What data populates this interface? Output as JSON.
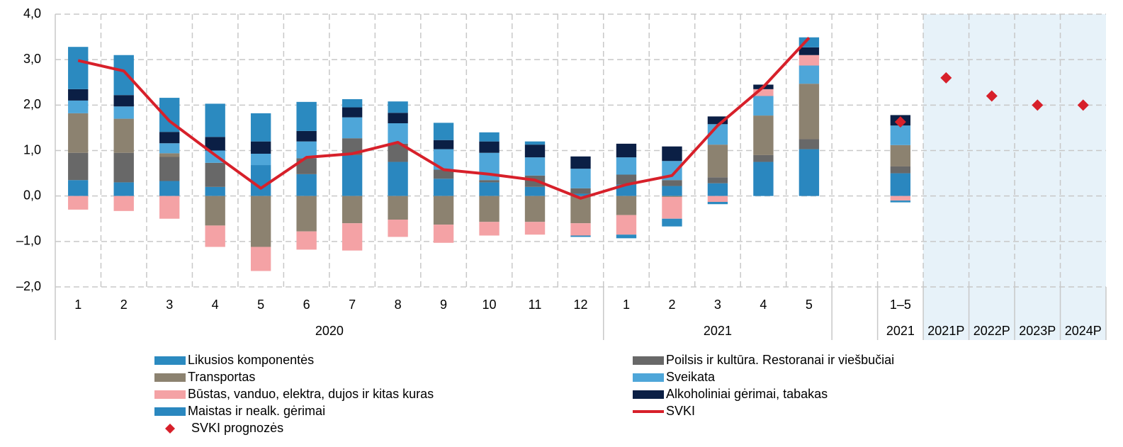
{
  "chart_data": {
    "type": "bar",
    "stacked": true,
    "categories": [
      "1",
      "2",
      "3",
      "4",
      "5",
      "6",
      "7",
      "8",
      "9",
      "10",
      "11",
      "12",
      "1",
      "2",
      "3",
      "4",
      "5",
      null,
      "1–5",
      null,
      null,
      null,
      null
    ],
    "category_groups": [
      {
        "label": "2020",
        "count": 12
      },
      {
        "label": "2021",
        "count": 5
      },
      {
        "label": null,
        "count": 1
      },
      {
        "label": "2021",
        "count": 1
      },
      {
        "label": "2021P",
        "count": 1
      },
      {
        "label": "2022P",
        "count": 1
      },
      {
        "label": "2023P",
        "count": 1
      },
      {
        "label": "2024P",
        "count": 1
      }
    ],
    "series": [
      {
        "name": "Maistas ir nealk. gėrimai",
        "color": "#2a87bf",
        "values": [
          0.35,
          0.3,
          0.33,
          0.2,
          0.68,
          0.48,
          0.9,
          0.75,
          0.38,
          0.3,
          0.2,
          0.05,
          0.25,
          0.22,
          0.28,
          0.75,
          1.03,
          null,
          0.5,
          null,
          null,
          null,
          null
        ]
      },
      {
        "name": "Poilsis ir kultūra. Restoranai ir viešbučiai",
        "color": "#686868",
        "values": [
          0.6,
          0.65,
          0.53,
          0.53,
          0,
          0.35,
          0.37,
          0.4,
          0.2,
          0.05,
          0.25,
          0.12,
          0.22,
          0.13,
          0.13,
          0.15,
          0.22,
          null,
          0.15,
          null,
          null,
          null,
          null
        ]
      },
      {
        "name": "Transportas",
        "color": "#8c8270",
        "values": [
          0.87,
          0.75,
          0.08,
          -0.65,
          -1.12,
          -0.78,
          -0.6,
          -0.52,
          -0.63,
          -0.57,
          -0.57,
          -0.6,
          -0.42,
          -0.02,
          0.72,
          0.87,
          1.22,
          null,
          0.47,
          null,
          null,
          null,
          null
        ]
      },
      {
        "name": "Sveikata",
        "color": "#4ea6d9",
        "values": [
          0.28,
          0.27,
          0.22,
          0.27,
          0.25,
          0.37,
          0.46,
          0.45,
          0.45,
          0.6,
          0.4,
          0.43,
          0.38,
          0.42,
          0.45,
          0.43,
          0.4,
          null,
          0.43,
          null,
          null,
          null,
          null
        ]
      },
      {
        "name": "Būstas, vanduo, elektra, dujos ir kitas kuras",
        "color": "#f4a2a5",
        "values": [
          -0.3,
          -0.33,
          -0.5,
          -0.47,
          -0.53,
          -0.4,
          -0.6,
          -0.38,
          -0.4,
          -0.3,
          -0.28,
          -0.27,
          -0.43,
          -0.48,
          -0.13,
          0.15,
          0.23,
          null,
          -0.1,
          null,
          null,
          null,
          null
        ]
      },
      {
        "name": "Alkoholiniai gėrimai, tabakas",
        "color": "#0b1f45",
        "values": [
          0.25,
          0.25,
          0.25,
          0.3,
          0.27,
          0.23,
          0.22,
          0.23,
          0.2,
          0.25,
          0.28,
          0.27,
          0.3,
          0.32,
          0.17,
          0.1,
          0.17,
          null,
          0.23,
          null,
          null,
          null,
          null
        ]
      },
      {
        "name": "Likusios komponentės",
        "color": "#2b8ac0",
        "values": [
          0.93,
          0.88,
          0.75,
          0.73,
          0.62,
          0.64,
          0.18,
          0.25,
          0.38,
          0.2,
          0.07,
          -0.03,
          -0.08,
          -0.17,
          -0.05,
          0,
          0.22,
          null,
          -0.04,
          null,
          null,
          null,
          null
        ]
      },
      {
        "name": "SVKI",
        "type": "line",
        "color": "#d7202a",
        "values": [
          2.98,
          2.75,
          1.65,
          0.9,
          0.17,
          0.85,
          0.93,
          1.18,
          0.58,
          0.48,
          0.35,
          -0.05,
          0.25,
          0.45,
          1.55,
          2.4,
          3.48,
          null,
          null,
          null,
          null,
          null,
          null
        ]
      },
      {
        "name": "SVKI prognozės",
        "type": "scatter",
        "color": "#d7202a",
        "values": [
          null,
          null,
          null,
          null,
          null,
          null,
          null,
          null,
          null,
          null,
          null,
          null,
          null,
          null,
          null,
          null,
          null,
          null,
          1.63,
          2.6,
          2.2,
          2.0,
          2.0
        ]
      }
    ],
    "ylim": [
      -2,
      4
    ],
    "yticks": [
      {
        "value": -2,
        "label": "–2,0"
      },
      {
        "value": -1,
        "label": "–1,0"
      },
      {
        "value": 0,
        "label": "0,0"
      },
      {
        "value": 1,
        "label": "1,0"
      },
      {
        "value": 2,
        "label": "2,0"
      },
      {
        "value": 3,
        "label": "3,0"
      },
      {
        "value": 4,
        "label": "4,0"
      }
    ],
    "grid": true
  }
}
